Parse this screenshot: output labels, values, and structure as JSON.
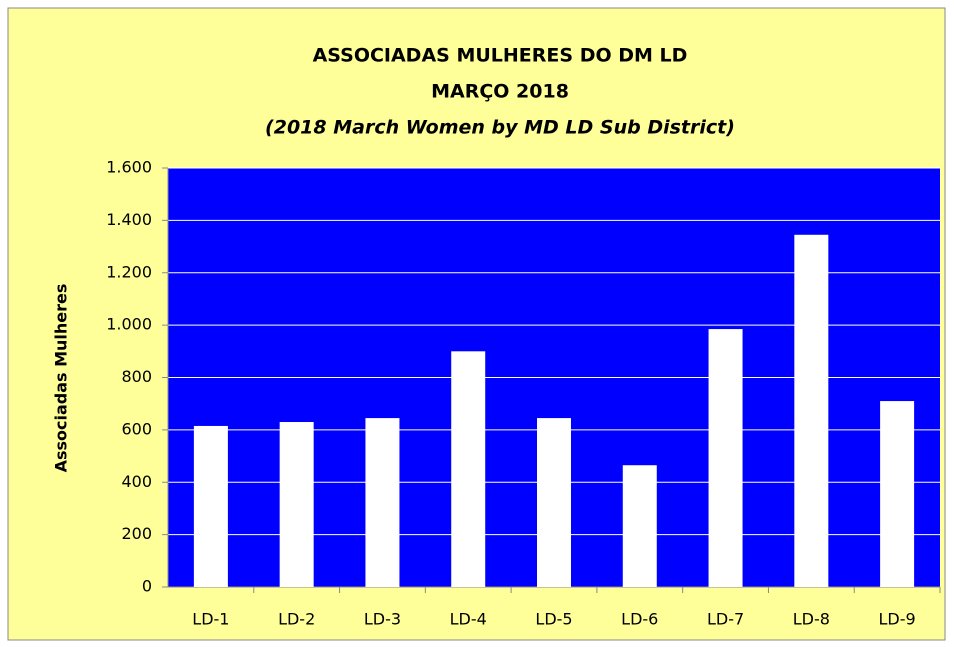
{
  "chart_data": {
    "type": "bar",
    "title": "ASSOCIADAS MULHERES DO DM LD",
    "subtitle": [
      "MARÇO 2018",
      "(2018  March Women by MD LD Sub District)"
    ],
    "y_label": "Associadas   Mulheres",
    "categories": [
      "LD-1",
      "LD-2",
      "LD-3",
      "LD-4",
      "LD-5",
      "LD-6",
      "LD-7",
      "LD-8",
      "LD-9"
    ],
    "values": [
      615,
      630,
      645,
      900,
      645,
      465,
      985,
      1345,
      710
    ],
    "color": "#ffffff",
    "plot_background": "#0000ff",
    "background": "#ffff99",
    "ylim": [
      0,
      1600
    ],
    "yticks": [
      0,
      200,
      400,
      600,
      800,
      {
        "value": 1000,
        "label": "1.000"
      },
      {
        "value": 1200,
        "label": "1.200"
      },
      {
        "value": 1400,
        "label": "1.400"
      },
      {
        "value": 1600,
        "label": "1.600"
      }
    ],
    "grid": true
  }
}
